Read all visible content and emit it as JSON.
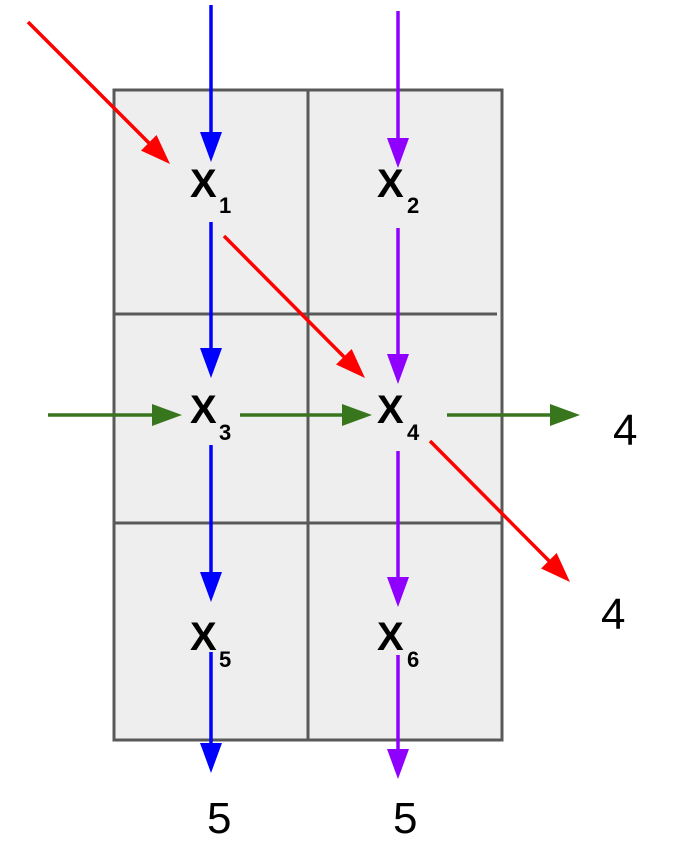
{
  "grid": {
    "fill": "#eeeeee",
    "stroke": "#595959"
  },
  "cells": [
    {
      "letter": "X",
      "subscript": "1"
    },
    {
      "letter": "X",
      "subscript": "2"
    },
    {
      "letter": "X",
      "subscript": "3"
    },
    {
      "letter": "X",
      "subscript": "4"
    },
    {
      "letter": "X",
      "subscript": "5"
    },
    {
      "letter": "X",
      "subscript": "6"
    }
  ],
  "outputs": {
    "right_green": "4",
    "right_diagonal": "4",
    "bottom_left": "5",
    "bottom_right": "5"
  },
  "colors": {
    "blue": "#0000ff",
    "purple": "#8f00ff",
    "red": "#ff0000",
    "green": "#38761d"
  }
}
